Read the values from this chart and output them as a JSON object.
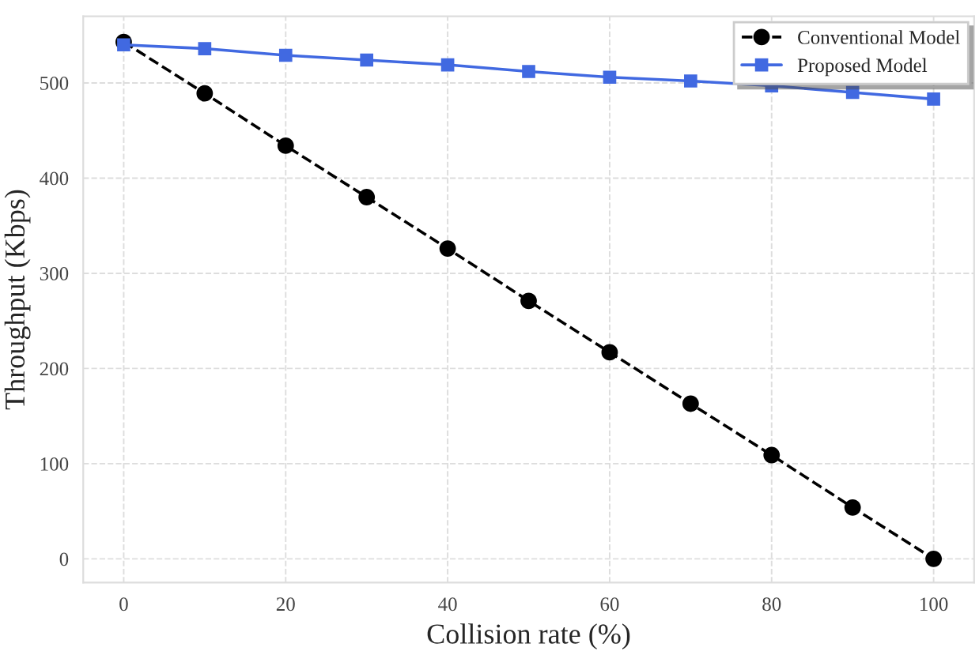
{
  "chart_data": {
    "type": "line",
    "xlabel": "Collision rate (%)",
    "ylabel": "Throughput (Kbps)",
    "x": [
      0,
      10,
      20,
      30,
      40,
      50,
      60,
      70,
      80,
      90,
      100
    ],
    "series": [
      {
        "name": "Conventional Model",
        "color": "#000000",
        "marker": "circle",
        "line_style": "dashed",
        "values": [
          543,
          489,
          434,
          380,
          326,
          271,
          217,
          163,
          109,
          54,
          0
        ]
      },
      {
        "name": "Proposed Model",
        "color": "#4169e1",
        "marker": "square",
        "line_style": "solid",
        "values": [
          540,
          536,
          529,
          524,
          519,
          512,
          506,
          502,
          497,
          490,
          483
        ]
      }
    ],
    "xlim": [
      -5,
      105
    ],
    "xticks": [
      0,
      20,
      40,
      60,
      80,
      100
    ],
    "ylim": [
      -25,
      570
    ],
    "yticks": [
      0,
      100,
      200,
      300,
      400,
      500
    ],
    "grid": true,
    "legend": "top right"
  }
}
